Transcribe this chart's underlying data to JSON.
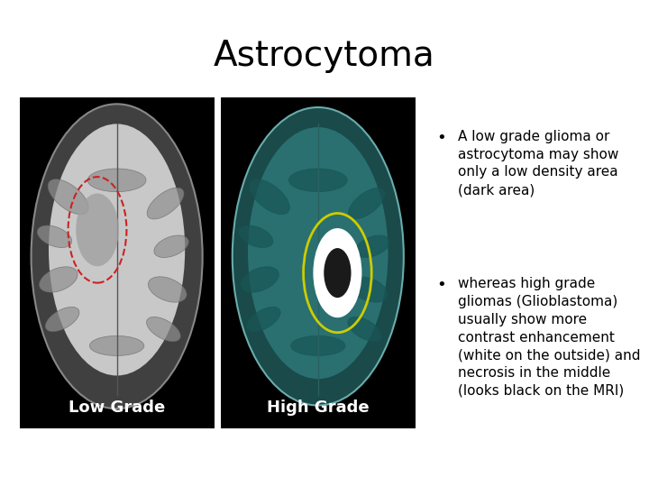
{
  "title": "Astrocytoma",
  "title_fontsize": 28,
  "title_font": "DejaVu Sans",
  "background_color": "#ffffff",
  "bullet1": "A low grade glioma or astrocytoma may show only a low density area (dark area)",
  "bullet2": "whereas high grade gliomas (Glioblastoma) usually show more contrast enhancement (white on the outside) and  necrosis in the middle (looks black on the MRI)",
  "label_low": "Low Grade",
  "label_high": "High Grade",
  "text_fontsize": 11,
  "label_fontsize": 13
}
